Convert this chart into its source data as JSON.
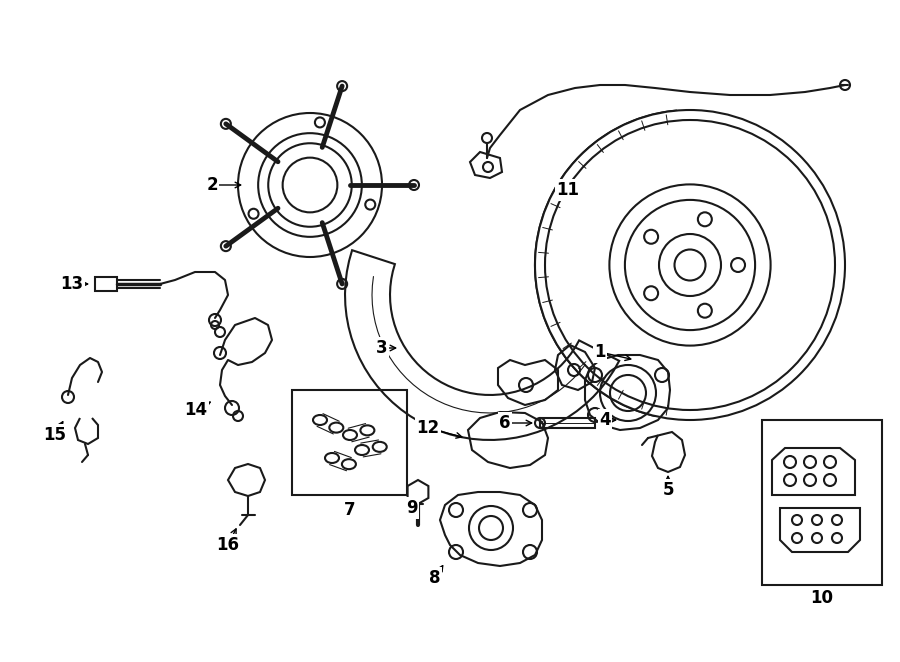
{
  "background_color": "#ffffff",
  "line_color": "#1a1a1a",
  "line_width": 1.5,
  "fig_width": 9.0,
  "fig_height": 6.62,
  "dpi": 100,
  "font_size": 12
}
